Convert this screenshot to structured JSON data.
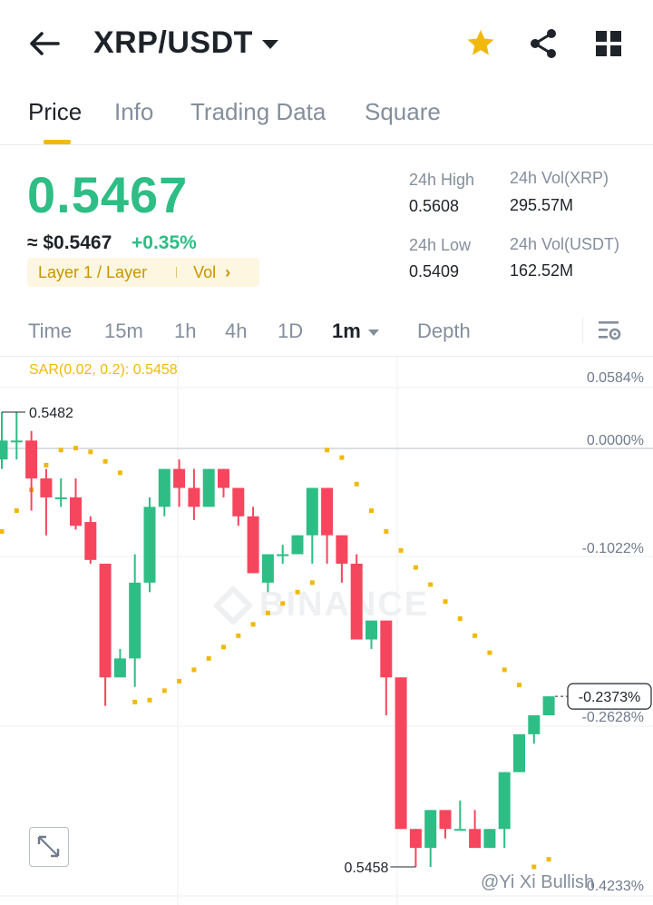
{
  "header": {
    "pair": "XRP/USDT",
    "icons": [
      "back-arrow-icon",
      "chevron-down-icon",
      "star-icon",
      "share-icon",
      "grid-icon"
    ],
    "star_color": "#f0b90b"
  },
  "tabs": [
    {
      "label": "Price",
      "active": true
    },
    {
      "label": "Info",
      "active": false
    },
    {
      "label": "Trading Data",
      "active": false
    },
    {
      "label": "Square",
      "active": false
    }
  ],
  "price": {
    "last": "0.5467",
    "approx_fiat": "≈ $0.5467",
    "change": "+0.35%",
    "tag": "Layer 1 / Layer",
    "vol_link": "Vol",
    "color_up": "#2ebd85",
    "color_down": "#f6465d"
  },
  "stats": {
    "high_label": "24h High",
    "high_value": "0.5608",
    "low_label": "24h Low",
    "low_value": "0.5409",
    "vol_base_label": "24h Vol(XRP)",
    "vol_base_value": "295.57M",
    "vol_quote_label": "24h Vol(USDT)",
    "vol_quote_value": "162.52M"
  },
  "intervals": [
    {
      "label": "Time"
    },
    {
      "label": "15m"
    },
    {
      "label": "1h"
    },
    {
      "label": "4h"
    },
    {
      "label": "1D"
    },
    {
      "label": "1m",
      "active": true
    },
    {
      "label": "Depth"
    }
  ],
  "chart": {
    "sar_label": "SAR(0.02, 0.2): 0.5458",
    "axis_labels": [
      "0.0584%",
      "0.0000%",
      "-0.1022%",
      "-0.2628%"
    ],
    "current_label": "-0.2373%",
    "max_label": "0.5482",
    "min_label": "0.5458",
    "watermark": "BINANCE",
    "author": "@Yi Xi Bullish",
    "partial_label": "0.4233%"
  },
  "chart_data": {
    "type": "candlestick",
    "candles": [
      {
        "o": 0.54795,
        "h": 0.5482,
        "l": 0.5479,
        "c": 0.54805
      },
      {
        "o": 0.54805,
        "h": 0.5482,
        "l": 0.54795,
        "c": 0.54805
      },
      {
        "o": 0.54805,
        "h": 0.5481,
        "l": 0.54768,
        "c": 0.54785
      },
      {
        "o": 0.54785,
        "h": 0.5479,
        "l": 0.54755,
        "c": 0.54775
      },
      {
        "o": 0.54775,
        "h": 0.54785,
        "l": 0.5477,
        "c": 0.54775
      },
      {
        "o": 0.54775,
        "h": 0.54785,
        "l": 0.54758,
        "c": 0.5476
      },
      {
        "o": 0.54762,
        "h": 0.54765,
        "l": 0.5474,
        "c": 0.54742
      },
      {
        "o": 0.5474,
        "h": 0.5474,
        "l": 0.54665,
        "c": 0.5468
      },
      {
        "o": 0.5468,
        "h": 0.54695,
        "l": 0.5468,
        "c": 0.5469
      },
      {
        "o": 0.5469,
        "h": 0.54745,
        "l": 0.54675,
        "c": 0.5473
      },
      {
        "o": 0.5473,
        "h": 0.54775,
        "l": 0.54725,
        "c": 0.5477
      },
      {
        "o": 0.5477,
        "h": 0.5479,
        "l": 0.54765,
        "c": 0.5479
      },
      {
        "o": 0.5479,
        "h": 0.54795,
        "l": 0.5477,
        "c": 0.5478
      },
      {
        "o": 0.5478,
        "h": 0.5479,
        "l": 0.54763,
        "c": 0.5477
      },
      {
        "o": 0.5477,
        "h": 0.5479,
        "l": 0.5477,
        "c": 0.5479
      },
      {
        "o": 0.5479,
        "h": 0.5479,
        "l": 0.54775,
        "c": 0.5478
      },
      {
        "o": 0.5478,
        "h": 0.5478,
        "l": 0.5476,
        "c": 0.54765
      },
      {
        "o": 0.54765,
        "h": 0.5477,
        "l": 0.54735,
        "c": 0.54735
      },
      {
        "o": 0.5473,
        "h": 0.54745,
        "l": 0.54725,
        "c": 0.54745
      },
      {
        "o": 0.54745,
        "h": 0.5475,
        "l": 0.5474,
        "c": 0.54745
      },
      {
        "o": 0.54745,
        "h": 0.54755,
        "l": 0.54745,
        "c": 0.54755
      },
      {
        "o": 0.54755,
        "h": 0.5478,
        "l": 0.5474,
        "c": 0.5478
      },
      {
        "o": 0.5478,
        "h": 0.5478,
        "l": 0.5474,
        "c": 0.54755
      },
      {
        "o": 0.54755,
        "h": 0.54755,
        "l": 0.5473,
        "c": 0.5474
      },
      {
        "o": 0.5474,
        "h": 0.54745,
        "l": 0.547,
        "c": 0.547
      },
      {
        "o": 0.547,
        "h": 0.5471,
        "l": 0.54695,
        "c": 0.5471
      },
      {
        "o": 0.5471,
        "h": 0.5471,
        "l": 0.5466,
        "c": 0.5468
      },
      {
        "o": 0.5468,
        "h": 0.5468,
        "l": 0.546,
        "c": 0.546
      },
      {
        "o": 0.546,
        "h": 0.546,
        "l": 0.5458,
        "c": 0.5459
      },
      {
        "o": 0.5459,
        "h": 0.5461,
        "l": 0.5458,
        "c": 0.5461
      },
      {
        "o": 0.5461,
        "h": 0.5461,
        "l": 0.54595,
        "c": 0.546
      },
      {
        "o": 0.546,
        "h": 0.54615,
        "l": 0.546,
        "c": 0.546
      },
      {
        "o": 0.546,
        "h": 0.5461,
        "l": 0.5459,
        "c": 0.5459
      },
      {
        "o": 0.5459,
        "h": 0.546,
        "l": 0.5459,
        "c": 0.546
      },
      {
        "o": 0.546,
        "h": 0.5463,
        "l": 0.5459,
        "c": 0.5463
      },
      {
        "o": 0.5463,
        "h": 0.5465,
        "l": 0.5463,
        "c": 0.5465
      },
      {
        "o": 0.5465,
        "h": 0.5466,
        "l": 0.54645,
        "c": 0.5466
      },
      {
        "o": 0.5466,
        "h": 0.5467,
        "l": 0.5466,
        "c": 0.5467
      }
    ],
    "sar": [
      0.54757,
      0.54768,
      0.54779,
      0.54792,
      0.548,
      0.54801,
      0.54799,
      0.54794,
      0.54788,
      0.54667,
      0.54668,
      0.54673,
      0.54678,
      0.54684,
      0.5469,
      0.54696,
      0.54702,
      0.54708,
      0.54714,
      0.54719,
      0.54725,
      0.5473,
      0.548,
      0.54796,
      0.54782,
      0.54768,
      0.54757,
      0.54747,
      0.54738,
      0.54729,
      0.5472,
      0.54711,
      0.54702,
      0.54693,
      0.54684,
      0.54676,
      0.5458,
      0.54584
    ]
  }
}
